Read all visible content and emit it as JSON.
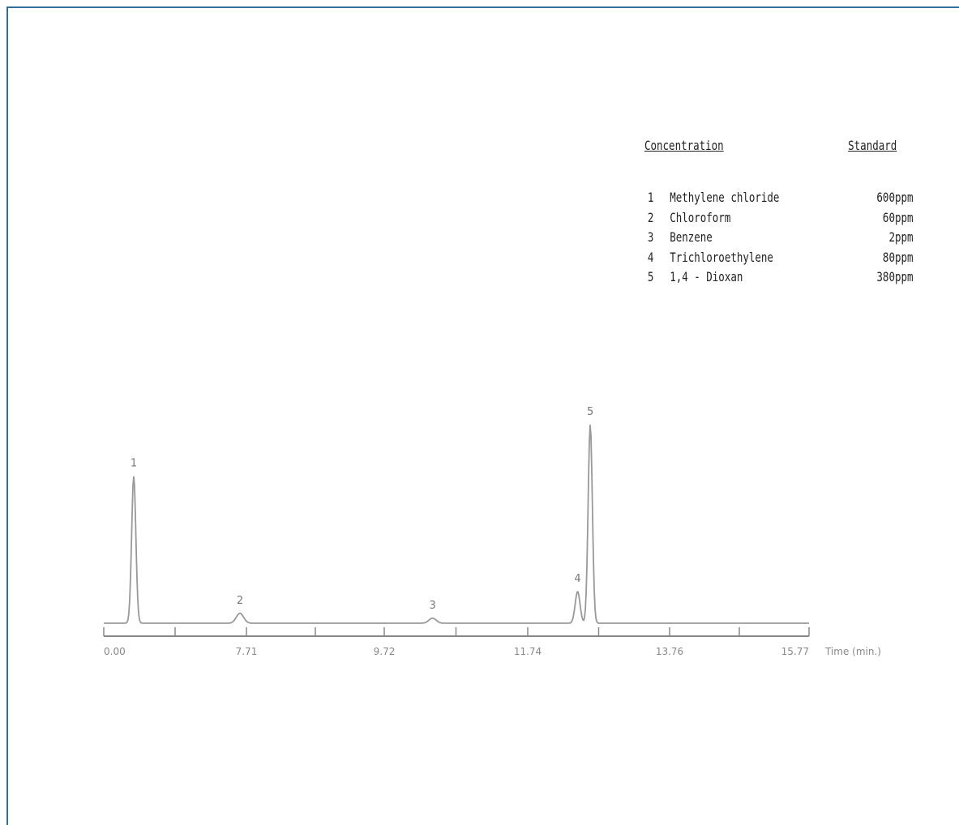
{
  "legend": {
    "left_header": "Concentration",
    "right_header": "Standard",
    "rows": [
      {
        "num": "1",
        "name": "Methylene chloride",
        "conc": "600ppm"
      },
      {
        "num": "2",
        "name": "Chloroform",
        "conc": "60ppm"
      },
      {
        "num": "3",
        "name": "Benzene",
        "conc": "2ppm"
      },
      {
        "num": "4",
        "name": "Trichloroethylene",
        "conc": "80ppm"
      },
      {
        "num": "5",
        "name": "1,4 - Dioxan",
        "conc": "380ppm"
      }
    ]
  },
  "chart_data": {
    "type": "line",
    "xlabel": "Time (min.)",
    "ylabel": "",
    "xlim": [
      0.0,
      15.77
    ],
    "x_tick_labels": [
      "0.00",
      "7.71",
      "9.72",
      "11.74",
      "13.76",
      "15.77"
    ],
    "peaks": [
      {
        "label": "1",
        "x": 1.62,
        "height": 0.74
      },
      {
        "label": "2",
        "x": 7.36,
        "height": 0.05
      },
      {
        "label": "3",
        "x": 10.4,
        "height": 0.025
      },
      {
        "label": "4",
        "x": 12.45,
        "height": 0.16
      },
      {
        "label": "5",
        "x": 12.63,
        "height": 1.0
      }
    ]
  }
}
